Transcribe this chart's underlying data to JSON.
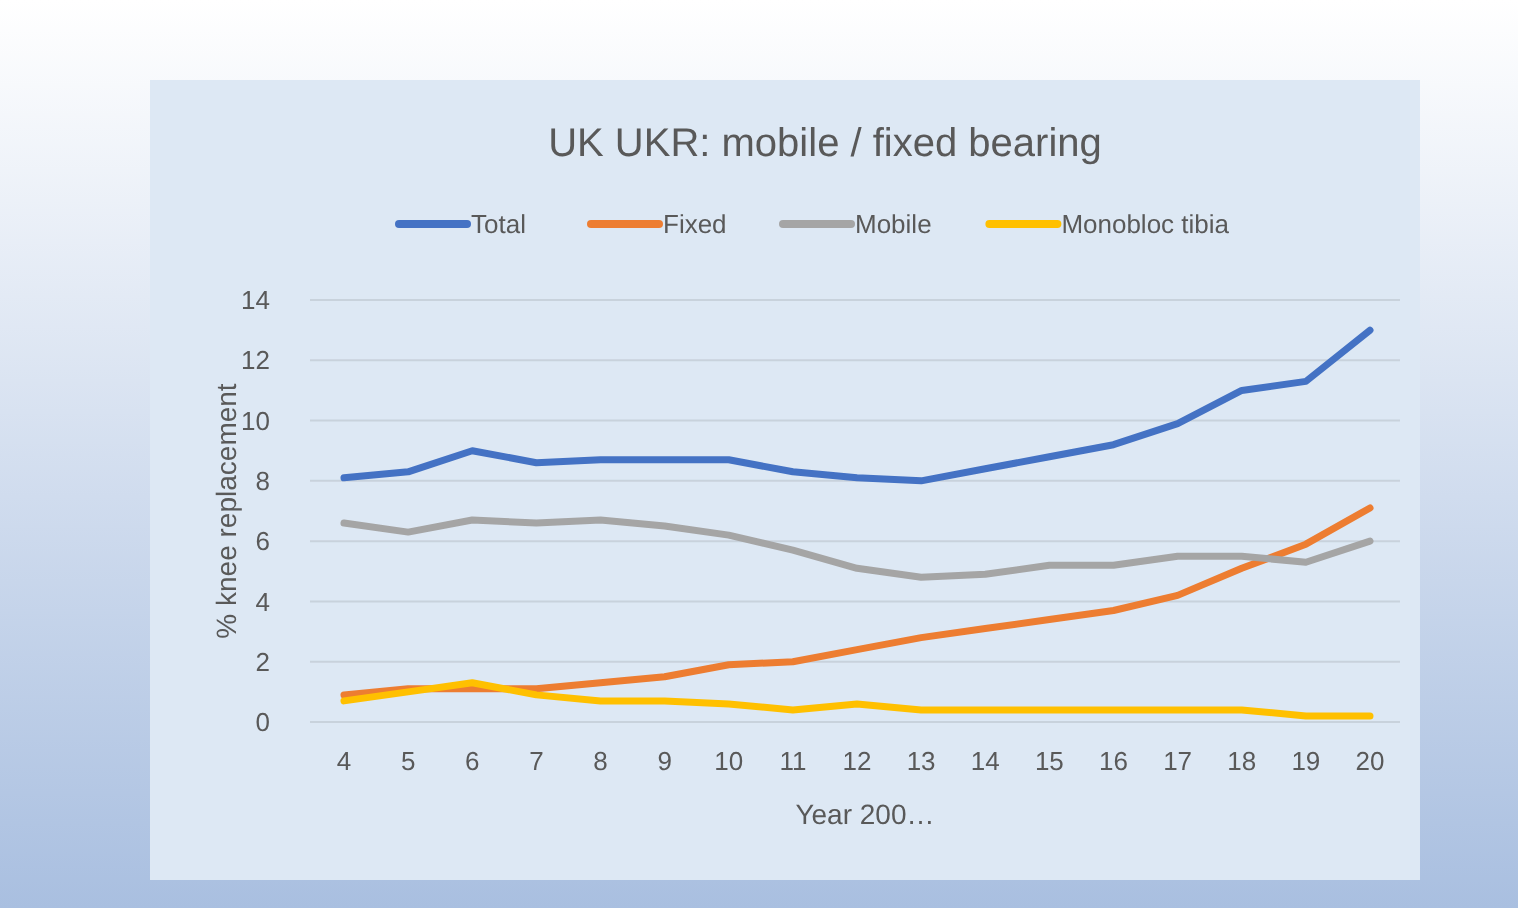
{
  "chart_data": {
    "type": "line",
    "title": "UK UKR: mobile / fixed bearing",
    "xlabel": "Year 200…",
    "ylabel": "% knee replacement",
    "categories": [
      "4",
      "5",
      "6",
      "7",
      "8",
      "9",
      "10",
      "11",
      "12",
      "13",
      "14",
      "15",
      "16",
      "17",
      "18",
      "19",
      "20"
    ],
    "series": [
      {
        "name": "Total",
        "color": "#4472c4",
        "values": [
          8.1,
          8.3,
          9.0,
          8.6,
          8.7,
          8.7,
          8.7,
          8.3,
          8.1,
          8.0,
          8.4,
          8.8,
          9.2,
          9.9,
          11.0,
          11.3,
          13.0
        ]
      },
      {
        "name": "Fixed",
        "color": "#ed7d31",
        "values": [
          0.9,
          1.1,
          1.1,
          1.1,
          1.3,
          1.5,
          1.9,
          2.0,
          2.4,
          2.8,
          3.1,
          3.4,
          3.7,
          4.2,
          5.1,
          5.9,
          7.1
        ]
      },
      {
        "name": "Mobile",
        "color": "#a5a5a5",
        "values": [
          6.6,
          6.3,
          6.7,
          6.6,
          6.7,
          6.5,
          6.2,
          5.7,
          5.1,
          4.8,
          4.9,
          5.2,
          5.2,
          5.5,
          5.5,
          5.3,
          6.0
        ]
      },
      {
        "name": "Monobloc tibia",
        "color": "#ffc000",
        "values": [
          0.7,
          1.0,
          1.3,
          0.9,
          0.7,
          0.7,
          0.6,
          0.4,
          0.6,
          0.4,
          0.4,
          0.4,
          0.4,
          0.4,
          0.4,
          0.2,
          0.2
        ]
      }
    ],
    "ylim": [
      0,
      14
    ],
    "yticks": [
      0,
      2,
      4,
      6,
      8,
      10,
      12,
      14
    ],
    "grid": "y",
    "legend": "top",
    "marker": "none",
    "line_style": "solid"
  }
}
